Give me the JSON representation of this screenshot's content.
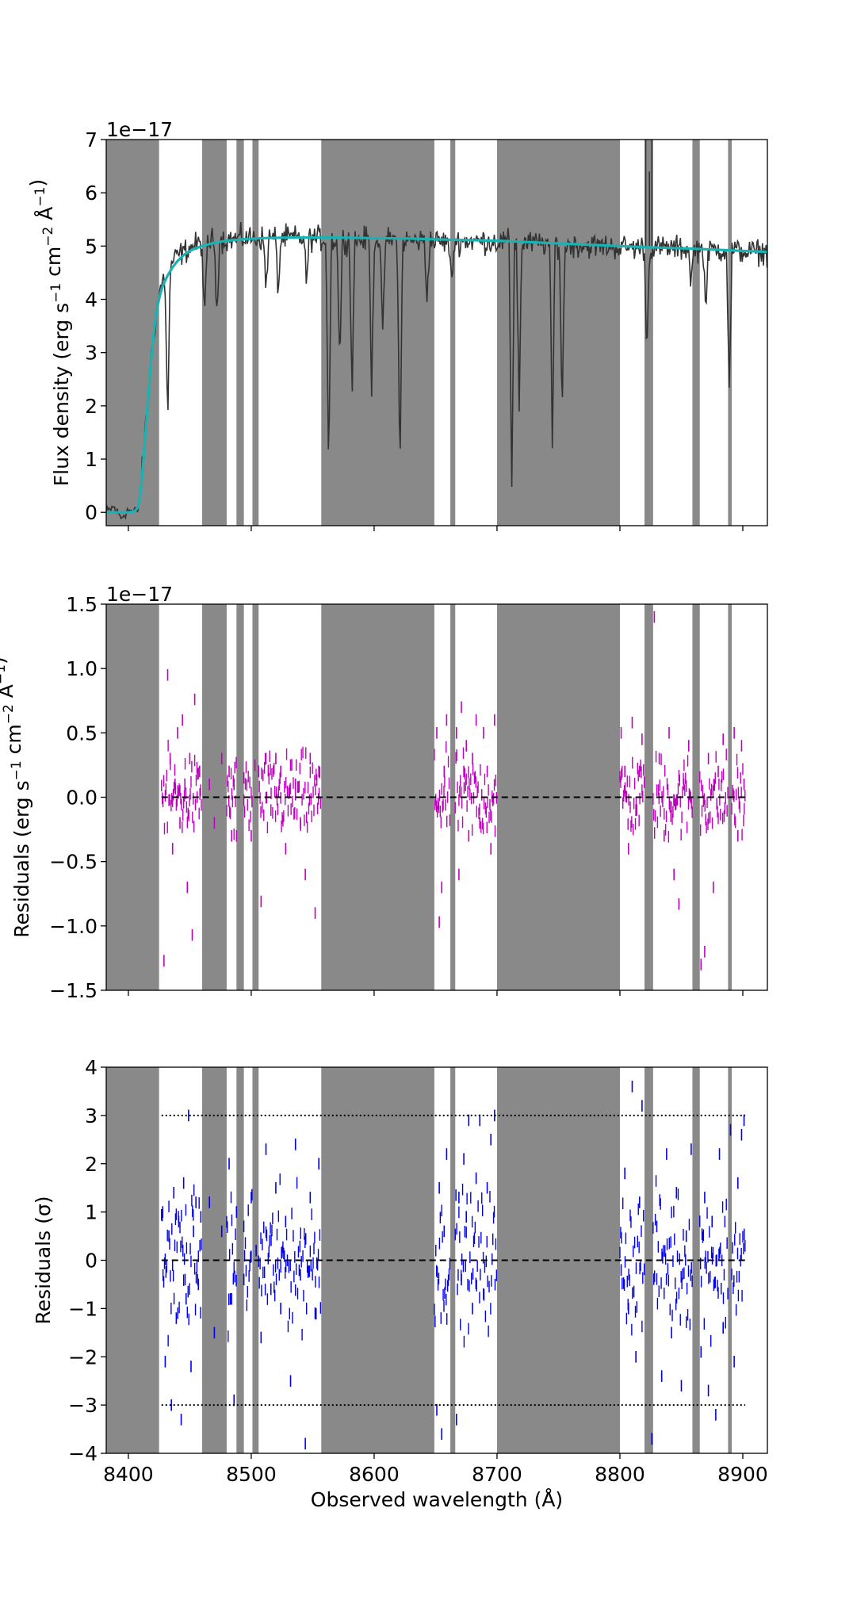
{
  "chart_data": [
    {
      "type": "line",
      "name": "flux-panel",
      "ylabel": "Flux density (erg s$^{-1}$ cm$^{-2}$ Å$^{-1}$)",
      "ylabel_parts": [
        "Flux density (erg s",
        "−1",
        " cm",
        "−2",
        " Å",
        "−1",
        ")"
      ],
      "offset_text": "1e−17",
      "xlim": [
        8382,
        8920
      ],
      "ylim": [
        -0.25,
        7
      ],
      "yticks": [
        0,
        1,
        2,
        3,
        4,
        5,
        6,
        7
      ],
      "ytick_labels": [
        "0",
        "1",
        "2",
        "3",
        "4",
        "5",
        "6",
        "7"
      ],
      "xticks": [
        8400,
        8500,
        8600,
        8700,
        8800,
        8900
      ],
      "grid": false,
      "series": [
        {
          "role": "data",
          "color": "#333333",
          "x": [
            8382,
            8388,
            8394,
            8400,
            8404,
            8408,
            8410,
            8413,
            8416,
            8419,
            8422,
            8425,
            8428,
            8432,
            8436,
            8440,
            8446,
            8452,
            8460,
            8468,
            8480,
            8495,
            8510,
            8530,
            8550,
            8565,
            8590,
            8610,
            8620,
            8640,
            8660,
            8680,
            8700,
            8720,
            8740,
            8760,
            8780,
            8800,
            8820,
            8840,
            8860,
            8880,
            8900,
            8920
          ],
          "y": [
            0.0,
            0.1,
            -0.1,
            0.05,
            0.0,
            0.05,
            0.4,
            1.3,
            2.2,
            3.0,
            3.6,
            4.1,
            4.35,
            4.55,
            4.7,
            4.82,
            4.9,
            5.0,
            5.05,
            5.1,
            5.12,
            5.15,
            5.15,
            5.15,
            5.15,
            5.12,
            5.12,
            5.12,
            5.1,
            5.1,
            5.08,
            5.1,
            5.08,
            5.05,
            5.05,
            5.02,
            5.0,
            4.98,
            4.97,
            4.96,
            4.95,
            4.93,
            4.9,
            4.88
          ]
        },
        {
          "role": "absorption",
          "color": "#333333",
          "x": [
            8364,
            8432,
            8462,
            8472,
            8512,
            8522,
            8545,
            8563,
            8572,
            8582,
            8598,
            8607,
            8621,
            8643,
            8663,
            8712,
            8718,
            8745,
            8753,
            8822,
            8858,
            8870,
            8889
          ],
          "y": [
            1.0,
            1.65,
            3.5,
            3.8,
            4.2,
            4.1,
            4.3,
            0.8,
            2.8,
            2.2,
            2.3,
            3.2,
            0.6,
            4.0,
            4.2,
            0.5,
            2.0,
            1.2,
            1.8,
            3.0,
            4.3,
            3.8,
            2.2
          ]
        },
        {
          "role": "model",
          "color": "#1ab2b2",
          "x": [
            8382,
            8400,
            8405,
            8408,
            8410,
            8412,
            8414,
            8416,
            8418,
            8420,
            8422,
            8424,
            8426,
            8428,
            8432,
            8436,
            8440,
            8446,
            8452,
            8460,
            8470,
            8480,
            8495,
            8510,
            8530,
            8550,
            8570,
            8600,
            8630,
            8660,
            8700,
            8740,
            8780,
            8820,
            8860,
            8900,
            8920
          ],
          "y": [
            0.0,
            0.0,
            0.02,
            0.1,
            0.4,
            0.9,
            1.5,
            2.1,
            2.7,
            3.2,
            3.6,
            3.9,
            4.1,
            4.25,
            4.45,
            4.6,
            4.72,
            4.85,
            4.93,
            5.0,
            5.06,
            5.1,
            5.13,
            5.15,
            5.16,
            5.16,
            5.16,
            5.15,
            5.14,
            5.12,
            5.1,
            5.06,
            5.02,
            4.98,
            4.95,
            4.91,
            4.89
          ]
        }
      ]
    },
    {
      "type": "scatter",
      "name": "residuals-panel",
      "ylabel": "Residuals (erg s$^{-1}$ cm$^{-2}$ Å$^{-1}$)",
      "ylabel_parts": [
        "Residuals (erg s",
        "−1",
        " cm",
        "−2",
        " Å",
        "−1",
        ")"
      ],
      "offset_text": "1e−17",
      "xlim": [
        8382,
        8920
      ],
      "ylim": [
        -1.5,
        1.5
      ],
      "yticks": [
        -1.5,
        -1.0,
        -0.5,
        0.0,
        0.5,
        1.0,
        1.5
      ],
      "ytick_labels": [
        "−1.5",
        "−1.0",
        "−0.5",
        "0.0",
        "0.5",
        "1.0",
        "1.5"
      ],
      "xticks": [
        8400,
        8500,
        8600,
        8700,
        8800,
        8900
      ],
      "zero_line": 0,
      "grid": false,
      "series": [
        {
          "role": "residuals",
          "color": "#bf00bf",
          "marker": "tick",
          "x": [
            8429,
            8432,
            8434,
            8436,
            8438,
            8440,
            8442,
            8444,
            8446,
            8448,
            8450,
            8452,
            8454,
            8456,
            8458,
            8466,
            8470,
            8476,
            8482,
            8484,
            8486,
            8488,
            8494,
            8500,
            8503,
            8506,
            8508,
            8512,
            8516,
            8520,
            8524,
            8528,
            8532,
            8536,
            8540,
            8544,
            8548,
            8552,
            8555,
            8651,
            8653,
            8655,
            8657,
            8659,
            8667,
            8669,
            8671,
            8673,
            8675,
            8677,
            8680,
            8683,
            8686,
            8689,
            8692,
            8695,
            8698,
            8801,
            8804,
            8807,
            8810,
            8813,
            8816,
            8818,
            8828,
            8832,
            8836,
            8840,
            8844,
            8848,
            8852,
            8856,
            8866,
            8869,
            8872,
            8876,
            8880,
            8884,
            8893,
            8896,
            8899,
            8901
          ],
          "y": [
            -1.27,
            0.95,
            0.3,
            -0.4,
            0.1,
            0.5,
            -0.2,
            0.6,
            0.1,
            -0.7,
            0.3,
            -1.07,
            0.76,
            0.0,
            0.2,
            0.1,
            -0.2,
            0.3,
            0.2,
            -0.3,
            0.1,
            -0.3,
            0.15,
            -0.3,
            0.25,
            0.2,
            -0.81,
            0.3,
            -0.1,
            0.3,
            0.2,
            -0.4,
            0.25,
            0.1,
            -0.2,
            -0.6,
            0.3,
            -0.9,
            0.2,
            0.5,
            -0.97,
            -0.7,
            0.2,
            0.6,
            0.5,
            -0.6,
            0.7,
            0.2,
            0.4,
            -0.3,
            0.3,
            0.6,
            -0.2,
            0.5,
            0.2,
            -0.4,
            0.6,
            0.5,
            0.2,
            -0.4,
            0.58,
            -0.1,
            0.2,
            0.45,
            1.4,
            0.3,
            -0.3,
            0.5,
            -0.6,
            -0.83,
            0.1,
            0.4,
            -1.3,
            -1.2,
            0.3,
            -0.7,
            0.2,
            0.45,
            0.5,
            -0.3,
            0.4,
            0.1
          ]
        }
      ]
    },
    {
      "type": "scatter",
      "name": "normalized-residuals-panel",
      "ylabel": "Residuals ($\\sigma$)",
      "ylabel_parts": [
        "Residuals (",
        "σ",
        ")"
      ],
      "xlabel": "Observed wavelength (Å)",
      "xlim": [
        8382,
        8920
      ],
      "ylim": [
        -4,
        4
      ],
      "yticks": [
        -4,
        -3,
        -2,
        -1,
        0,
        1,
        2,
        3,
        4
      ],
      "ytick_labels": [
        "−4",
        "−3",
        "−2",
        "−1",
        "0",
        "1",
        "2",
        "3",
        "4"
      ],
      "xticks": [
        8400,
        8500,
        8600,
        8700,
        8800,
        8900
      ],
      "xtick_labels": [
        "8400",
        "8500",
        "8600",
        "8700",
        "8800",
        "8900"
      ],
      "zero_line": 0,
      "sigma_lines": [
        -3,
        3
      ],
      "grid": false,
      "series": [
        {
          "role": "residuals",
          "color": "#0000ee",
          "marker": "tick",
          "x": [
            8428,
            8430,
            8433,
            8435,
            8437,
            8439,
            8441,
            8443,
            8445,
            8447,
            8449,
            8451,
            8453,
            8455,
            8457,
            8459,
            8466,
            8470,
            8476,
            8482,
            8484,
            8486,
            8488,
            8494,
            8500,
            8504,
            8508,
            8512,
            8516,
            8520,
            8524,
            8528,
            8532,
            8536,
            8540,
            8544,
            8548,
            8552,
            8555,
            8651,
            8653,
            8655,
            8657,
            8659,
            8667,
            8669,
            8671,
            8673,
            8675,
            8677,
            8680,
            8683,
            8686,
            8689,
            8692,
            8695,
            8698,
            8801,
            8804,
            8807,
            8810,
            8813,
            8816,
            8818,
            8826,
            8830,
            8834,
            8838,
            8842,
            8846,
            8850,
            8854,
            8858,
            8866,
            8869,
            8872,
            8875,
            8878,
            8881,
            8884,
            8890,
            8893,
            8896,
            8899,
            8901
          ],
          "y": [
            1.0,
            -2.1,
            0.5,
            -3.0,
            1.4,
            -1.2,
            0.8,
            -3.3,
            1.6,
            -0.8,
            3.0,
            -2.2,
            0.6,
            1.2,
            -0.5,
            0.9,
            1.2,
            -1.5,
            0.6,
            2.0,
            -0.8,
            -2.9,
            1.0,
            -0.4,
            1.3,
            0.2,
            -1.6,
            2.3,
            -0.6,
            1.5,
            -1.0,
            0.8,
            -2.5,
            2.4,
            -0.3,
            -3.8,
            1.3,
            -1.1,
            2.0,
            -3.1,
            1.5,
            -3.6,
            0.6,
            2.2,
            -3.3,
            1.3,
            -0.4,
            2.1,
            0.9,
            2.9,
            -1.0,
            1.7,
            2.9,
            -0.7,
            1.5,
            2.5,
            3.0,
            -0.2,
            1.8,
            -1.0,
            3.6,
            -2.0,
            1.2,
            3.2,
            -3.7,
            0.7,
            -2.4,
            2.2,
            -1.5,
            1.4,
            -2.6,
            0.5,
            2.3,
            -1.9,
            1.3,
            -2.7,
            0.8,
            -3.2,
            2.2,
            -1.4,
            2.7,
            -2.1,
            1.6,
            2.6,
            2.9
          ]
        }
      ]
    }
  ],
  "masked_regions": [
    [
      8382,
      8425
    ],
    [
      8460,
      8480
    ],
    [
      8488,
      8494
    ],
    [
      8501,
      8506
    ],
    [
      8557,
      8649
    ],
    [
      8662,
      8666
    ],
    [
      8700,
      8800
    ],
    [
      8820,
      8827
    ],
    [
      8859,
      8865
    ],
    [
      8888,
      8891
    ]
  ],
  "colors": {
    "mask": "#898989",
    "data_line": "#333333",
    "model_line": "#1ab2b2",
    "residuals_flux": "#bf00bf",
    "residuals_sigma": "#0000ee",
    "reference_line": "#000000"
  }
}
